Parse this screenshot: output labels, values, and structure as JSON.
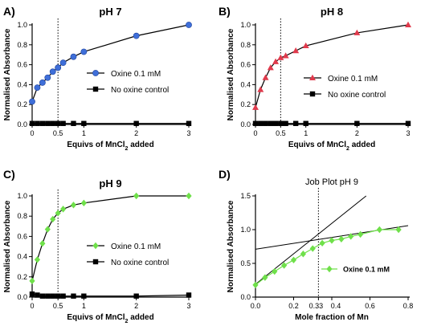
{
  "chart_data": [
    {
      "type": "scatter",
      "panel": "A)",
      "title": "pH 7",
      "xlabel": "Equivs of MnCl₂ added",
      "ylabel": "Normalised Absorbance",
      "xlim": [
        0,
        3
      ],
      "ylim": [
        0,
        1.0
      ],
      "xticks": [
        "0",
        "0.5",
        "1",
        "2",
        "3"
      ],
      "yticks": [
        "0.0",
        "0.2",
        "0.4",
        "0.6",
        "0.8",
        "1.0"
      ],
      "vline": 0.5,
      "legend_position": "right",
      "series": [
        {
          "name": "Oxine 0.1 mM",
          "marker": "circle",
          "color": "#3f6fd9",
          "x": [
            0,
            0.1,
            0.2,
            0.3,
            0.4,
            0.5,
            0.6,
            0.8,
            1.0,
            2.0,
            3.0
          ],
          "y": [
            0.23,
            0.37,
            0.42,
            0.47,
            0.53,
            0.57,
            0.62,
            0.68,
            0.73,
            0.89,
            1.0
          ]
        },
        {
          "name": "No oxine control",
          "marker": "square",
          "color": "#000000",
          "x": [
            0,
            0.1,
            0.2,
            0.3,
            0.4,
            0.5,
            0.6,
            0.8,
            1.0,
            2.0,
            3.0
          ],
          "y": [
            0.01,
            0.01,
            0.01,
            0.01,
            0.01,
            0.01,
            0.01,
            0.01,
            0.01,
            0.01,
            0.01
          ]
        }
      ]
    },
    {
      "type": "scatter",
      "panel": "B)",
      "title": "pH 8",
      "xlabel": "Equivs of MnCl₂ added",
      "ylabel": "Normalised Absorbance",
      "xlim": [
        0,
        3
      ],
      "ylim": [
        0,
        1.0
      ],
      "xticks": [
        "0",
        "0.5",
        "1",
        "2",
        "3"
      ],
      "yticks": [
        "0.0",
        "0.2",
        "0.4",
        "0.6",
        "0.8",
        "1.0"
      ],
      "vline": 0.5,
      "legend_position": "right",
      "series": [
        {
          "name": "Oxine 0.1 mM",
          "marker": "triangle",
          "color": "#e03a4c",
          "x": [
            0,
            0.1,
            0.2,
            0.3,
            0.4,
            0.5,
            0.6,
            0.8,
            1.0,
            2.0,
            3.0
          ],
          "y": [
            0.17,
            0.35,
            0.47,
            0.57,
            0.63,
            0.67,
            0.69,
            0.74,
            0.79,
            0.92,
            1.0
          ]
        },
        {
          "name": "No oxine control",
          "marker": "square",
          "color": "#000000",
          "x": [
            0,
            0.1,
            0.2,
            0.3,
            0.4,
            0.5,
            0.6,
            0.8,
            1.0,
            2.0,
            3.0
          ],
          "y": [
            0.01,
            0.01,
            0.01,
            0.01,
            0.01,
            0.01,
            0.01,
            0.01,
            0.01,
            0.01,
            0.01
          ]
        }
      ]
    },
    {
      "type": "scatter",
      "panel": "C)",
      "title": "pH 9",
      "xlabel": "Equivs of MnCl₂ added",
      "ylabel": "Normalised Absorbance",
      "xlim": [
        0,
        3
      ],
      "ylim": [
        0,
        1.0
      ],
      "xticks": [
        "0",
        "0.5",
        "1",
        "2",
        "3"
      ],
      "yticks": [
        "0.0",
        "0.2",
        "0.4",
        "0.6",
        "0.8",
        "1.0"
      ],
      "vline": 0.5,
      "legend_position": "right",
      "series": [
        {
          "name": "Oxine 0.1 mM",
          "marker": "diamond",
          "color": "#6fe04a",
          "x": [
            0,
            0.1,
            0.2,
            0.3,
            0.4,
            0.5,
            0.6,
            0.8,
            1.0,
            2.0,
            3.0
          ],
          "y": [
            0.16,
            0.37,
            0.53,
            0.67,
            0.77,
            0.83,
            0.87,
            0.91,
            0.93,
            1.0,
            1.0
          ]
        },
        {
          "name": "No oxine control",
          "marker": "square",
          "color": "#000000",
          "x": [
            0,
            0.1,
            0.2,
            0.3,
            0.4,
            0.5,
            0.6,
            0.8,
            1.0,
            2.0,
            3.0
          ],
          "y": [
            0.03,
            0.02,
            0.01,
            0.01,
            0.01,
            0.01,
            0.01,
            0.01,
            0.01,
            0.01,
            0.02
          ]
        }
      ]
    },
    {
      "type": "scatter",
      "panel": "D)",
      "title": "Job Plot pH 9",
      "xlabel": "Mole fraction of Mn",
      "ylabel": "Normalised Absorbance",
      "xlim": [
        0,
        0.8
      ],
      "ylim": [
        0,
        1.5
      ],
      "xticks": [
        "0.0",
        "0.2",
        "0.33",
        "0.4",
        "0.6",
        "0.8"
      ],
      "yticks": [
        "0.0",
        "0.5",
        "1.0",
        "1.5"
      ],
      "vline": 0.33,
      "legend_position": "lower-right",
      "series": [
        {
          "name": "Oxine 0.1 mM",
          "marker": "diamond",
          "color": "#6fe04a",
          "x": [
            0,
            0.05,
            0.1,
            0.15,
            0.2,
            0.25,
            0.3,
            0.35,
            0.4,
            0.45,
            0.5,
            0.55,
            0.65,
            0.75
          ],
          "y": [
            0.18,
            0.29,
            0.38,
            0.47,
            0.55,
            0.64,
            0.72,
            0.8,
            0.84,
            0.86,
            0.9,
            0.93,
            1.0,
            1.0
          ]
        }
      ],
      "trendlines": [
        {
          "from": [
            0,
            0.19
          ],
          "to": [
            0.58,
            1.5
          ]
        },
        {
          "from": [
            0,
            0.71
          ],
          "to": [
            0.8,
            1.06
          ]
        }
      ]
    }
  ]
}
